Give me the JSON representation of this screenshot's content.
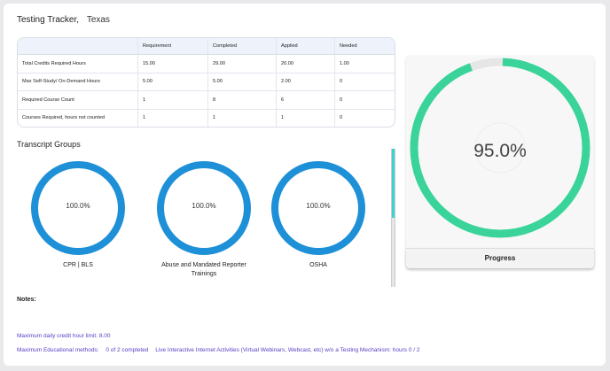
{
  "header": {
    "title": "Testing Tracker,",
    "state": "Texas"
  },
  "requirements_table": {
    "columns": [
      "",
      "Requirement",
      "Completed",
      "Applied",
      "Needed"
    ],
    "rows": [
      [
        "Total Credits Required Hours",
        "15.00",
        "29.00",
        "20.00",
        "1.00"
      ],
      [
        "Max Self-Study/ On-Demand Hours",
        "5.00",
        "5.00",
        "2.00",
        "0"
      ],
      [
        "Required Course Count",
        "1",
        "8",
        "6",
        "0"
      ],
      [
        "Courses Required, hours not counted",
        "1",
        "1",
        "1",
        "0"
      ]
    ]
  },
  "transcript_groups": {
    "title": "Transcript Groups",
    "items": [
      {
        "label": "CPR | BLS",
        "percent": "100.0%",
        "value": 1.0
      },
      {
        "label": "Abuse and Mandated Reporter Trainings",
        "percent": "100.0%",
        "value": 1.0
      },
      {
        "label": "OSHA",
        "percent": "100.0%",
        "value": 1.0
      }
    ]
  },
  "progress": {
    "percent": "95.0%",
    "value": 0.95,
    "label": "Progress"
  },
  "notes": {
    "title": "Notes:",
    "line1": "Maximum daily credit hour limit: 8.00",
    "line2_label": "Maximum Educational methods:",
    "line2_count": "0 of 2 completed",
    "line2_detail": "Live Interactive Internet Activities (Virtual Webinars, Webcast, etc) w/o a Testing Mechanism: hours 0 / 2"
  },
  "colors": {
    "group_ring": "#1e90d8",
    "progress_ring": "#3ad49a",
    "progress_track": "#e6e6e6",
    "note_text": "#5b3fc4"
  }
}
